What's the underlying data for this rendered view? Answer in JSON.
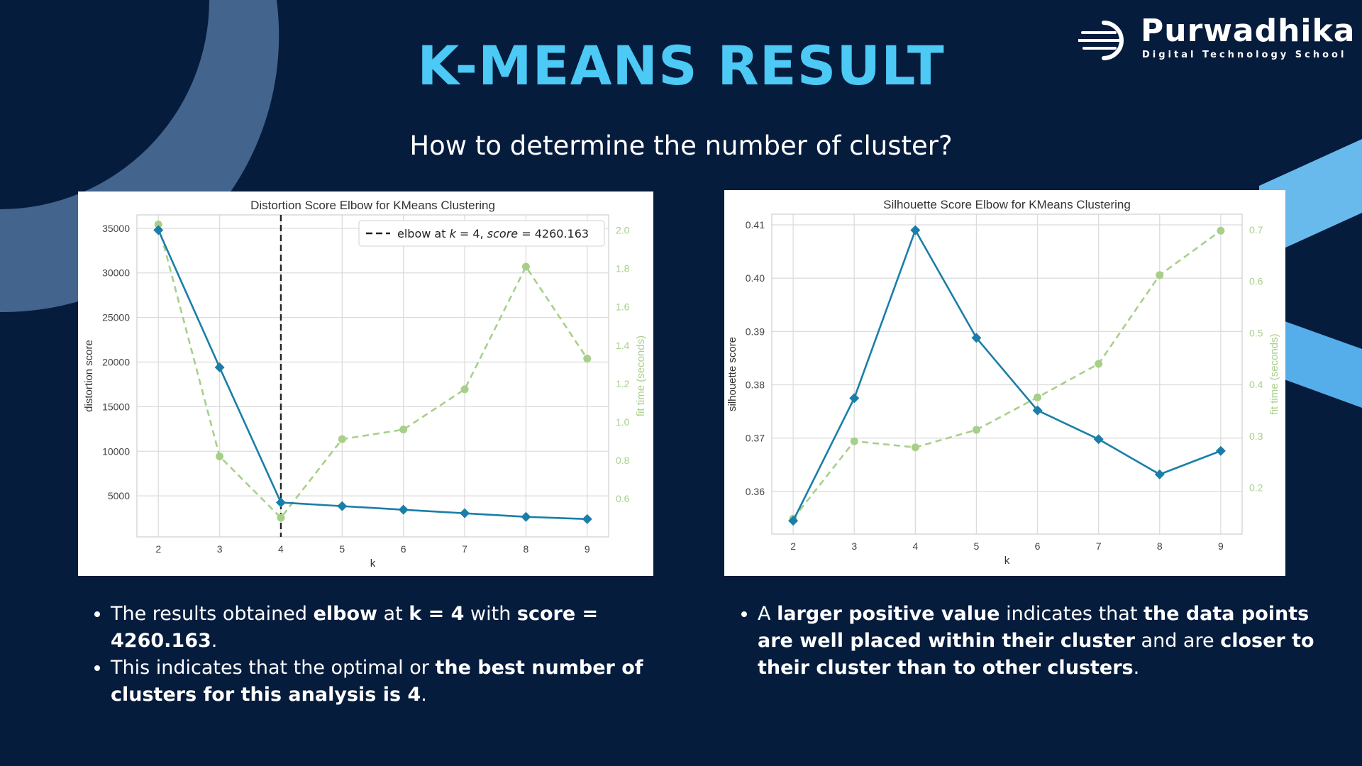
{
  "header": {
    "title": "K-MEANS RESULT",
    "subtitle": "How to determine the number of cluster?"
  },
  "logo": {
    "name": "Purwadhika",
    "tagline": "Digital Technology School"
  },
  "theme": {
    "background": "#061c3d",
    "title_color": "#4cc9f5",
    "series_primary": "#1a7ea8",
    "series_secondary": "#a8cf8a",
    "elbow_line": "#222222"
  },
  "chart_data": [
    {
      "type": "line",
      "title": "Distortion Score Elbow for KMeans Clustering",
      "xlabel": "k",
      "ylabel": "distortion score",
      "y2label": "fit time (seconds)",
      "x": [
        2,
        3,
        4,
        5,
        6,
        7,
        8,
        9
      ],
      "xlim": [
        1.65,
        9.35
      ],
      "ylim": [
        400,
        36500
      ],
      "y2lim": [
        0.4,
        2.08
      ],
      "yticks": [
        "5000",
        "10000",
        "15000",
        "20000",
        "25000",
        "30000",
        "35000"
      ],
      "y2ticks": [
        "0.6",
        "0.8",
        "1.0",
        "1.2",
        "1.4",
        "1.6",
        "1.8",
        "2.0"
      ],
      "series": [
        {
          "values": [
            34800,
            19400,
            4260.163,
            3850,
            3450,
            3050,
            2650,
            2400
          ],
          "axis": "left",
          "style": "solid-diamond"
        },
        {
          "values": [
            2.03,
            0.82,
            0.5,
            0.91,
            0.96,
            1.17,
            1.81,
            1.33
          ],
          "axis": "right",
          "style": "dashed-circle"
        }
      ],
      "elbow": {
        "k": 4,
        "legend_prefix": "elbow at ",
        "legend_k": "k",
        "legend_mid": " = 4, ",
        "legend_score": "score",
        "legend_suffix": " = 4260.163"
      },
      "grid": true
    },
    {
      "type": "line",
      "title": "Silhouette Score Elbow for KMeans Clustering",
      "xlabel": "k",
      "ylabel": "silhouette score",
      "y2label": "fit time (seconds)",
      "x": [
        2,
        3,
        4,
        5,
        6,
        7,
        8,
        9
      ],
      "xlim": [
        1.65,
        9.35
      ],
      "ylim": [
        0.352,
        0.412
      ],
      "y2lim": [
        0.11,
        0.73
      ],
      "yticks": [
        "0.36",
        "0.37",
        "0.38",
        "0.39",
        "0.40",
        "0.41"
      ],
      "y2ticks": [
        "0.2",
        "0.3",
        "0.4",
        "0.5",
        "0.6",
        "0.7"
      ],
      "series": [
        {
          "values": [
            0.3545,
            0.3775,
            0.409,
            0.3888,
            0.3752,
            0.3698,
            0.3632,
            0.3676
          ],
          "axis": "left",
          "style": "solid-diamond"
        },
        {
          "values": [
            0.14,
            0.29,
            0.278,
            0.312,
            0.375,
            0.44,
            0.612,
            0.698
          ],
          "axis": "right",
          "style": "dashed-circle"
        }
      ],
      "grid": true
    }
  ],
  "notes": {
    "left": [
      [
        {
          "t": "The results obtained ",
          "b": false
        },
        {
          "t": "elbow",
          "b": true
        },
        {
          "t": " at ",
          "b": false
        },
        {
          "t": "k = 4",
          "b": true
        },
        {
          "t": " with ",
          "b": false
        },
        {
          "t": "score = 4260.163",
          "b": true
        },
        {
          "t": ".",
          "b": false
        }
      ],
      [
        {
          "t": "This indicates that the optimal or ",
          "b": false
        },
        {
          "t": "the best number of clusters for this analysis is 4",
          "b": true
        },
        {
          "t": ".",
          "b": false
        }
      ]
    ],
    "right": [
      [
        {
          "t": "A ",
          "b": false
        },
        {
          "t": "larger positive value",
          "b": true
        },
        {
          "t": " indicates that ",
          "b": false
        },
        {
          "t": "the data points are well placed within their cluster",
          "b": true
        },
        {
          "t": " and are ",
          "b": false
        },
        {
          "t": "closer to their cluster than to other clusters",
          "b": true
        },
        {
          "t": ".",
          "b": false
        }
      ]
    ]
  }
}
